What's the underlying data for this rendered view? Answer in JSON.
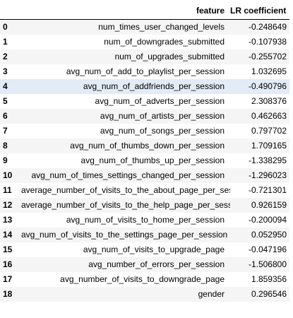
{
  "table": {
    "columns": {
      "index": "",
      "feature": "feature",
      "coef": "LR coefficient"
    },
    "highlighted_row": 4,
    "rows": [
      {
        "index": "0",
        "feature": "num_times_user_changed_levels",
        "coef": "-0.248649"
      },
      {
        "index": "1",
        "feature": "num_of_downgrades_submitted",
        "coef": "-0.107938"
      },
      {
        "index": "2",
        "feature": "num_of_upgrades_submitted",
        "coef": "-0.255702"
      },
      {
        "index": "3",
        "feature": "avg_num_of_add_to_playlist_per_session",
        "coef": "1.032695"
      },
      {
        "index": "4",
        "feature": "avg_num_of_addfriends_per_session",
        "coef": "-0.490796"
      },
      {
        "index": "5",
        "feature": "avg_num_of_adverts_per_session",
        "coef": "2.308376"
      },
      {
        "index": "6",
        "feature": "avg_num_of_artists_per_session",
        "coef": "0.462663"
      },
      {
        "index": "7",
        "feature": "avg_num_of_songs_per_session",
        "coef": "0.797702"
      },
      {
        "index": "8",
        "feature": "avg_num_of_thumbs_down_per_session",
        "coef": "1.709165"
      },
      {
        "index": "9",
        "feature": "avg_num_of_thumbs_up_per_session",
        "coef": "-1.338295"
      },
      {
        "index": "10",
        "feature": "avg_num_of_times_settings_changed_per_session",
        "coef": "-1.296023"
      },
      {
        "index": "11",
        "feature": "average_number_of_visits_to_the_about_page_per_session",
        "coef": "-0.721301"
      },
      {
        "index": "12",
        "feature": "average_number_of_visits_to_the_help_page_per_session",
        "coef": "0.926159"
      },
      {
        "index": "13",
        "feature": "avg_num_of_visits_to_home_per_session",
        "coef": "-0.200094"
      },
      {
        "index": "14",
        "feature": "avg_num_of_visits_to_the_settings_page_per_session",
        "coef": "0.052950"
      },
      {
        "index": "15",
        "feature": "avg_num_of_visits_to_upgrade_page",
        "coef": "-0.047196"
      },
      {
        "index": "16",
        "feature": "avg_number_of_errors_per_session",
        "coef": "-1.506800"
      },
      {
        "index": "17",
        "feature": "avg_number_of_visits_to_downgrade_page",
        "coef": "1.859356"
      },
      {
        "index": "18",
        "feature": "gender",
        "coef": "0.296546"
      }
    ]
  }
}
